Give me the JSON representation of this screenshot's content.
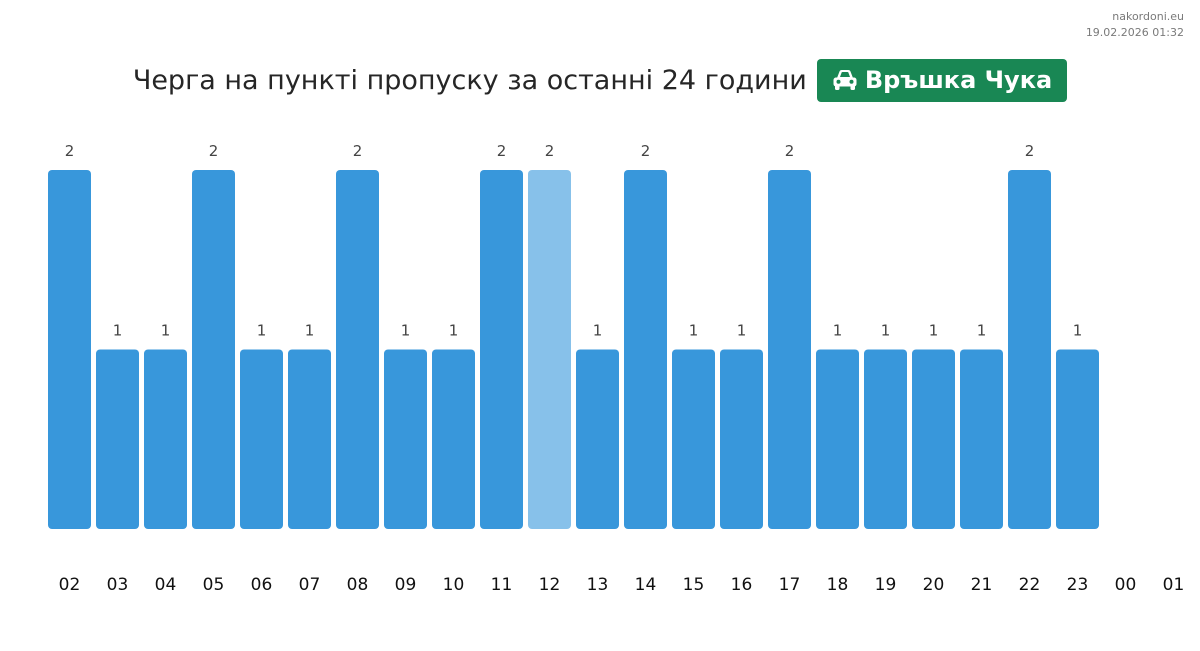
{
  "site": {
    "name": "nakordoni.eu",
    "timestamp": "19.02.2026 01:32"
  },
  "title": "Черга на пункті пропуску за останні 24 години",
  "badge": {
    "label": "Връшка Чука",
    "icon": "car-icon",
    "color": "#198754"
  },
  "colors": {
    "bar": "#3897db",
    "bar_highlight": "#87c1ea",
    "value_label": "#444444",
    "tick_label": "#111111"
  },
  "chart_data": {
    "type": "bar",
    "title": "Черга на пункті пропуску за останні 24 години",
    "xlabel": "",
    "ylabel": "",
    "categories": [
      "02",
      "03",
      "04",
      "05",
      "06",
      "07",
      "08",
      "09",
      "10",
      "11",
      "12",
      "13",
      "14",
      "15",
      "16",
      "17",
      "18",
      "19",
      "20",
      "21",
      "22",
      "23",
      "00",
      "01"
    ],
    "values": [
      2,
      1,
      1,
      2,
      1,
      1,
      2,
      1,
      1,
      2,
      2,
      1,
      2,
      1,
      1,
      2,
      1,
      1,
      1,
      1,
      2,
      1,
      null,
      null
    ],
    "data_labels": [
      "2",
      "1",
      "1",
      "2",
      "1",
      "1",
      "2",
      "1",
      "1",
      "2",
      "2",
      "1",
      "2",
      "1",
      "1",
      "2",
      "1",
      "1",
      "1",
      "1",
      "2",
      "1",
      "",
      ""
    ],
    "highlighted_category": "12",
    "ylim": [
      0,
      2
    ],
    "grid": false,
    "legend": "none"
  }
}
